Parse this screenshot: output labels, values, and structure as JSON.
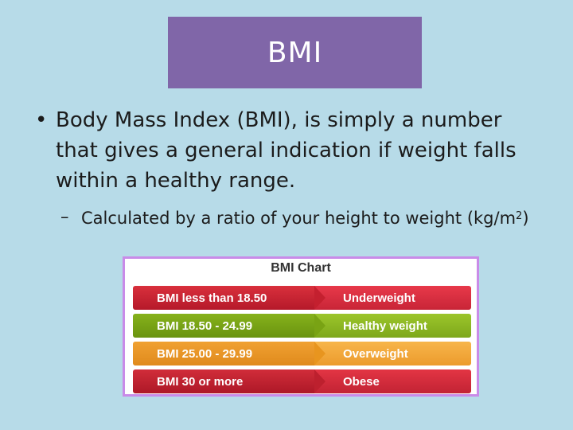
{
  "slide": {
    "title": "BMI",
    "bullet": {
      "marker": "•",
      "text": "Body Mass Index (BMI), is simply a number that gives a general indication if weight falls within a healthy range."
    },
    "sub_bullet": {
      "marker": "–",
      "text_before": "Calculated by a ratio of your height to weight (kg/m",
      "superscript": "2",
      "text_after": ")"
    }
  },
  "bmi_chart": {
    "title": "BMI Chart",
    "rows": [
      {
        "range": "BMI less than 18.50",
        "category": "Underweight",
        "color": "#c4202f"
      },
      {
        "range": "BMI 18.50 - 24.99",
        "category": "Healthy weight",
        "color": "#79a314"
      },
      {
        "range": "BMI 25.00 - 29.99",
        "category": "Overweight",
        "color": "#e8951f"
      },
      {
        "range": "BMI 30 or more",
        "category": "Obese",
        "color": "#bd202e"
      }
    ]
  },
  "colors": {
    "background": "#b7dbe8",
    "title_box": "#8066a8",
    "chart_border": "#c98be8"
  }
}
